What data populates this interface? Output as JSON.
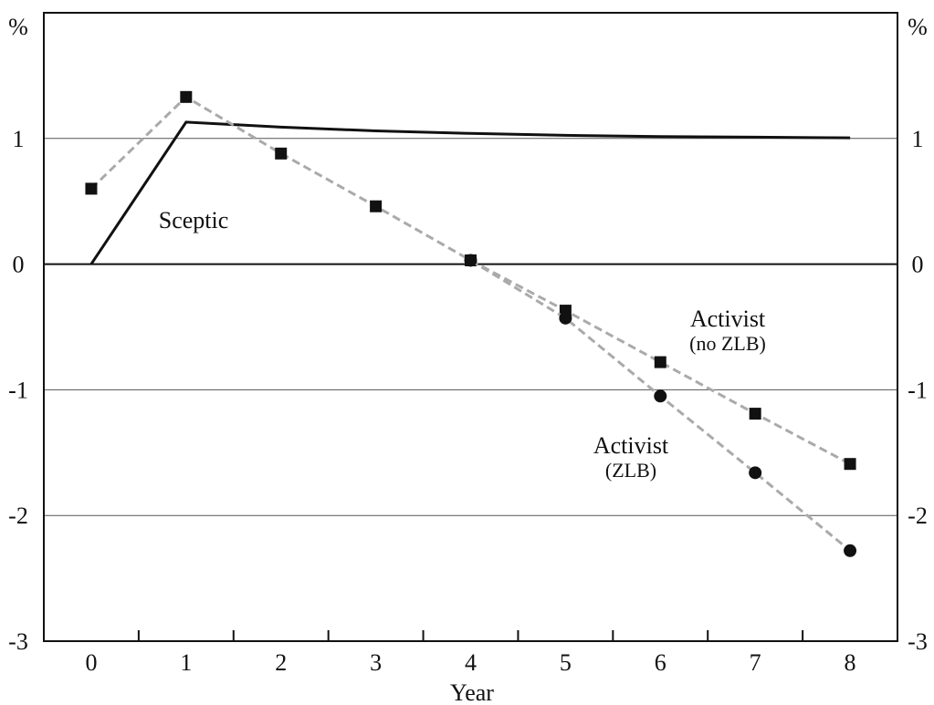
{
  "chart_data": {
    "type": "line",
    "xlabel": "Year",
    "ylabel_left": "%",
    "ylabel_right": "%",
    "xlim": [
      -0.5,
      8.5
    ],
    "ylim": [
      -3,
      2
    ],
    "x_ticks": [
      0,
      1,
      2,
      3,
      4,
      5,
      6,
      7,
      8
    ],
    "x_tick_labels": [
      "0",
      "1",
      "2",
      "3",
      "4",
      "5",
      "6",
      "7",
      "8"
    ],
    "y_ticks": [
      -3,
      -2,
      -1,
      0,
      1
    ],
    "y_tick_labels": [
      "-3",
      "-2",
      "-1",
      "0",
      "1"
    ],
    "grid": "horizontal",
    "series": [
      {
        "name": "Sceptic",
        "style": "solid",
        "marker": "none",
        "color": "#111111",
        "x": [
          0,
          1,
          2,
          3,
          4,
          5,
          6,
          7,
          8
        ],
        "values": [
          0.0,
          1.13,
          1.09,
          1.06,
          1.04,
          1.025,
          1.015,
          1.01,
          1.005
        ]
      },
      {
        "name": "Activist (no ZLB)",
        "style": "dashed",
        "marker": "square",
        "color": "#111111",
        "line_color": "#aaaaaa",
        "x": [
          0,
          1,
          2,
          3,
          4,
          5,
          6,
          7,
          8
        ],
        "values": [
          0.6,
          1.33,
          0.88,
          0.46,
          0.03,
          -0.37,
          -0.78,
          -1.19,
          -1.59
        ]
      },
      {
        "name": "Activist (ZLB)",
        "style": "dashed",
        "marker": "circle",
        "color": "#111111",
        "line_color": "#aaaaaa",
        "x": [
          4,
          5,
          6,
          7,
          8
        ],
        "values": [
          0.03,
          -0.43,
          -1.05,
          -1.66,
          -2.28
        ]
      }
    ],
    "annotations": [
      {
        "lines": [
          "Sceptic"
        ]
      },
      {
        "lines": [
          "Activist",
          "(no ZLB)"
        ]
      },
      {
        "lines": [
          "Activist",
          "(ZLB)"
        ]
      }
    ]
  }
}
